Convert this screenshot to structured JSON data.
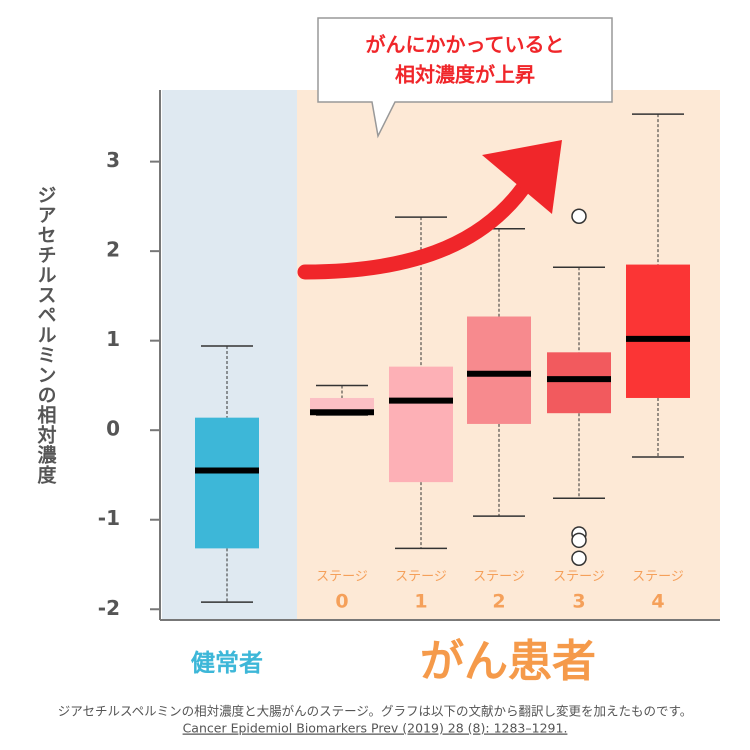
{
  "chart_data": {
    "type": "box",
    "ylabel": "ジアセチルスペルミンの相対濃度",
    "ylim": [
      -2.12,
      3.8
    ],
    "yticks": [
      -2,
      -1,
      0,
      1,
      2,
      3
    ],
    "categories": [
      null,
      [
        "ステージ",
        "0"
      ],
      [
        "ステージ",
        "1"
      ],
      [
        "ステージ",
        "2"
      ],
      [
        "ステージ",
        "3"
      ],
      [
        "ステージ",
        "4"
      ]
    ],
    "groups": [
      {
        "label": "健常者",
        "color": "#3db7d8",
        "background": "#dfe9f1"
      },
      {
        "label": "がん患者",
        "color": "#f59a4a",
        "background": "#fde9d6"
      }
    ],
    "boxes": [
      {
        "low": -1.92,
        "q1": -1.32,
        "median": -0.45,
        "q3": 0.14,
        "high": 0.94,
        "color": "#3db7d8",
        "outliers": []
      },
      {
        "low": 0.17,
        "q1": 0.19,
        "median": 0.2,
        "q3": 0.36,
        "high": 0.5,
        "color": "#fbbfc4",
        "outliers": []
      },
      {
        "low": -1.32,
        "q1": -0.58,
        "median": 0.33,
        "q3": 0.71,
        "high": 2.38,
        "color": "#fdb0b6",
        "outliers": []
      },
      {
        "low": -0.96,
        "q1": 0.07,
        "median": 0.63,
        "q3": 1.27,
        "high": 2.25,
        "color": "#f78a8e",
        "outliers": []
      },
      {
        "low": -0.76,
        "q1": 0.19,
        "median": 0.57,
        "q3": 0.87,
        "high": 1.82,
        "color": "#f25a5e",
        "outliers": [
          2.39,
          -1.16,
          -1.23,
          -1.43
        ]
      },
      {
        "low": -0.3,
        "q1": 0.36,
        "median": 1.02,
        "q3": 1.85,
        "high": 3.53,
        "color": "#fb3535",
        "outliers": []
      }
    ],
    "annotation": [
      "がんにかかっていると",
      "相対濃度が上昇"
    ],
    "caption": "ジアセチルスペルミンの相対濃度と大腸がんのステージ。グラフは以下の文献から翻訳し変更を加えたものです。",
    "citation": "Cancer Epidemiol Biomarkers Prev (2019) 28 (8): 1283–1291."
  }
}
